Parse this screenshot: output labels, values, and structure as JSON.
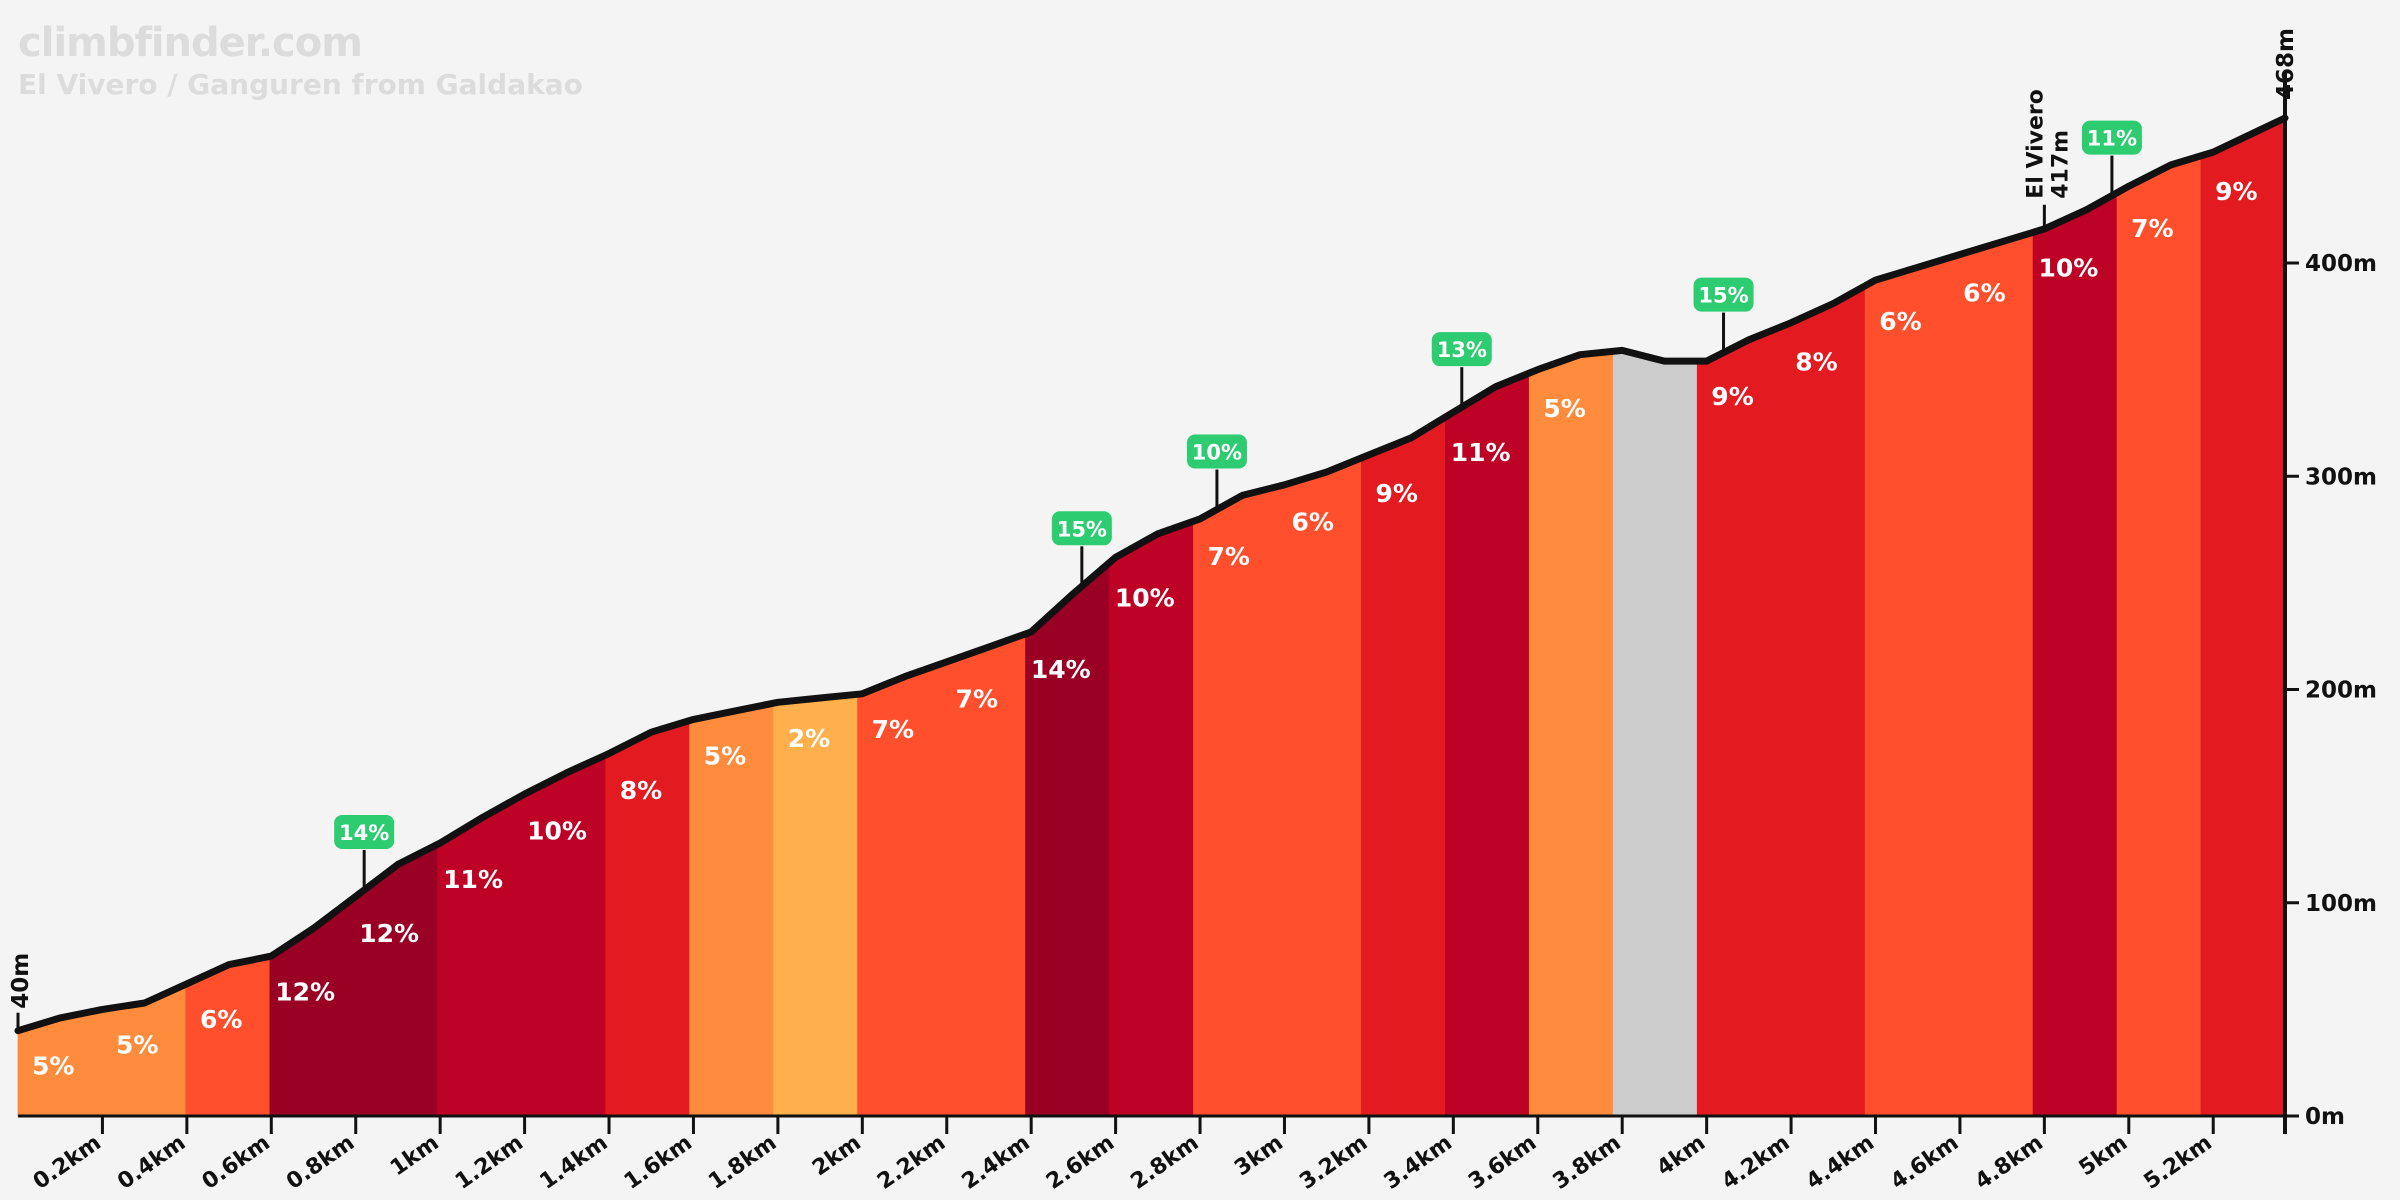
{
  "brand": {
    "logo": "climbfinder.com",
    "subtitle": "El Vivero / Ganguren from Galdakao"
  },
  "chart_data": {
    "type": "area",
    "title": "El Vivero / Ganguren from Galdakao",
    "xlabel": "",
    "ylabel": "",
    "xlim": [
      0,
      5.37
    ],
    "ylim": [
      0,
      468
    ],
    "x_ticks": [
      "0.2km",
      "0.4km",
      "0.6km",
      "0.8km",
      "1km",
      "1.2km",
      "1.4km",
      "1.6km",
      "1.8km",
      "2km",
      "2.2km",
      "2.4km",
      "2.6km",
      "2.8km",
      "3km",
      "3.2km",
      "3.4km",
      "3.6km",
      "3.8km",
      "4km",
      "4.2km",
      "4.4km",
      "4.6km",
      "4.8km",
      "5km",
      "5.2km"
    ],
    "y_ticks": [
      {
        "value": 0,
        "label": "0m"
      },
      {
        "value": 100,
        "label": "100m"
      },
      {
        "value": 200,
        "label": "200m"
      },
      {
        "value": 300,
        "label": "300m"
      },
      {
        "value": 400,
        "label": "400m"
      }
    ],
    "start_label": "40m",
    "end_label": "468m",
    "profile": [
      [
        0,
        40
      ],
      [
        0.1,
        46
      ],
      [
        0.2,
        50
      ],
      [
        0.3,
        53
      ],
      [
        0.4,
        62
      ],
      [
        0.5,
        71
      ],
      [
        0.6,
        75
      ],
      [
        0.7,
        88
      ],
      [
        0.8,
        103
      ],
      [
        0.9,
        118
      ],
      [
        1.0,
        128
      ],
      [
        1.1,
        140
      ],
      [
        1.2,
        151
      ],
      [
        1.3,
        161
      ],
      [
        1.4,
        170
      ],
      [
        1.5,
        180
      ],
      [
        1.6,
        186
      ],
      [
        1.7,
        190
      ],
      [
        1.8,
        194
      ],
      [
        1.9,
        196
      ],
      [
        2.0,
        198
      ],
      [
        2.1,
        206
      ],
      [
        2.2,
        213
      ],
      [
        2.3,
        220
      ],
      [
        2.4,
        227
      ],
      [
        2.5,
        245
      ],
      [
        2.6,
        262
      ],
      [
        2.7,
        273
      ],
      [
        2.8,
        280
      ],
      [
        2.9,
        291
      ],
      [
        3.0,
        296
      ],
      [
        3.1,
        302
      ],
      [
        3.2,
        310
      ],
      [
        3.3,
        318
      ],
      [
        3.4,
        330
      ],
      [
        3.5,
        342
      ],
      [
        3.6,
        350
      ],
      [
        3.7,
        357
      ],
      [
        3.8,
        359
      ],
      [
        3.9,
        354
      ],
      [
        4.0,
        354
      ],
      [
        4.1,
        364
      ],
      [
        4.2,
        372
      ],
      [
        4.3,
        381
      ],
      [
        4.4,
        392
      ],
      [
        4.5,
        398
      ],
      [
        4.6,
        404
      ],
      [
        4.7,
        410
      ],
      [
        4.8,
        416
      ],
      [
        4.9,
        425
      ],
      [
        5.0,
        436
      ],
      [
        5.1,
        446
      ],
      [
        5.2,
        452
      ],
      [
        5.37,
        468
      ]
    ],
    "segments": [
      {
        "grade": 5,
        "label": "5%",
        "color": "#ff8b3d"
      },
      {
        "grade": 5,
        "label": "5%",
        "color": "#ff8b3d"
      },
      {
        "grade": 6,
        "label": "6%",
        "color": "#ff4f2d"
      },
      {
        "grade": 12,
        "label": "12%",
        "color": "#990024"
      },
      {
        "grade": 12,
        "label": "12%",
        "color": "#990024"
      },
      {
        "grade": 11,
        "label": "11%",
        "color": "#bd0226"
      },
      {
        "grade": 10,
        "label": "10%",
        "color": "#bd0226"
      },
      {
        "grade": 8,
        "label": "8%",
        "color": "#e31b20"
      },
      {
        "grade": 5,
        "label": "5%",
        "color": "#ff8b3d"
      },
      {
        "grade": 2,
        "label": "2%",
        "color": "#ffb04d"
      },
      {
        "grade": 7,
        "label": "7%",
        "color": "#ff4f2d"
      },
      {
        "grade": 7,
        "label": "7%",
        "color": "#ff4f2d"
      },
      {
        "grade": 14,
        "label": "14%",
        "color": "#990024"
      },
      {
        "grade": 10,
        "label": "10%",
        "color": "#bd0226"
      },
      {
        "grade": 7,
        "label": "7%",
        "color": "#ff4f2d"
      },
      {
        "grade": 6,
        "label": "6%",
        "color": "#ff4f2d"
      },
      {
        "grade": 9,
        "label": "9%",
        "color": "#e31b20"
      },
      {
        "grade": 11,
        "label": "11%",
        "color": "#bd0226"
      },
      {
        "grade": 5,
        "label": "5%",
        "color": "#ff8b3d"
      },
      {
        "grade": null,
        "label": "",
        "color": "#cccccc"
      },
      {
        "grade": 9,
        "label": "9%",
        "color": "#e31b20"
      },
      {
        "grade": 8,
        "label": "8%",
        "color": "#e31b20"
      },
      {
        "grade": 6,
        "label": "6%",
        "color": "#ff4f2d"
      },
      {
        "grade": 6,
        "label": "6%",
        "color": "#ff4f2d"
      },
      {
        "grade": 10,
        "label": "10%",
        "color": "#bd0226"
      },
      {
        "grade": 7,
        "label": "7%",
        "color": "#ff4f2d"
      },
      {
        "grade": 9,
        "label": "9%",
        "color": "#e31b20"
      }
    ],
    "max_grade_flags": [
      {
        "x": 0.82,
        "label": "14%"
      },
      {
        "x": 2.52,
        "label": "15%"
      },
      {
        "x": 2.84,
        "label": "10%"
      },
      {
        "x": 3.42,
        "label": "13%"
      },
      {
        "x": 4.04,
        "label": "15%"
      },
      {
        "x": 4.96,
        "label": "11%"
      }
    ],
    "waypoints": [
      {
        "x": 4.8,
        "elevation": 417,
        "name": "El Vivero",
        "label": "417m"
      }
    ],
    "colors": {
      "background": "#f4f4f4",
      "profile_line": "#111111",
      "flag": "#2ecc71",
      "axis": "#111111",
      "segment_label": "#ffffff"
    }
  }
}
